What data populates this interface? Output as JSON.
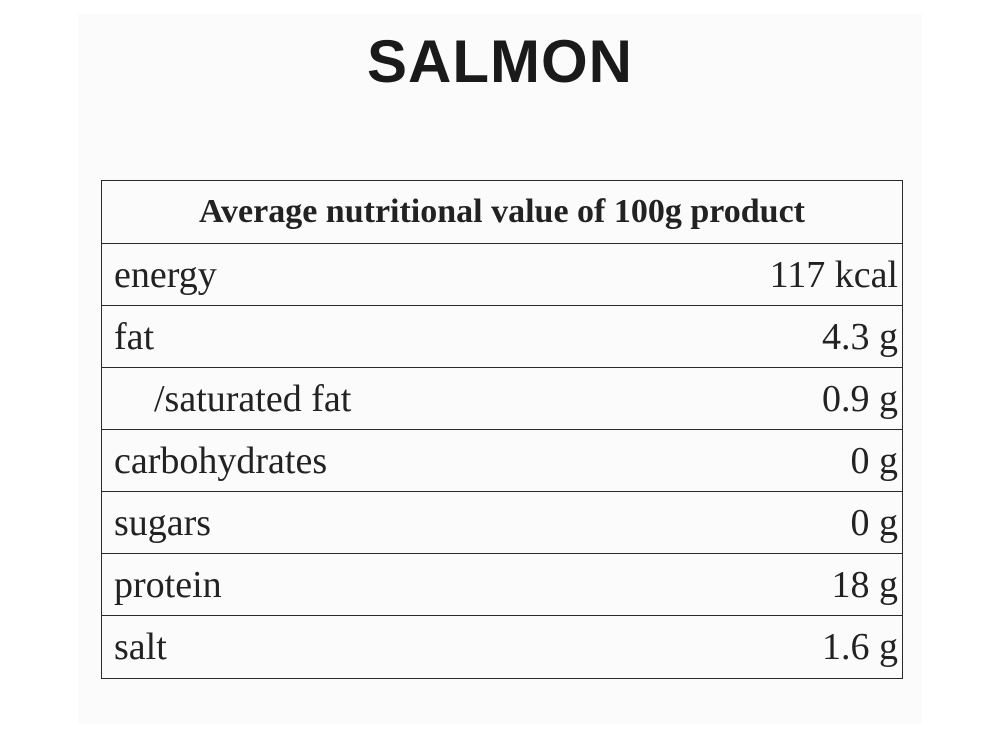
{
  "title": "SALMON",
  "table": {
    "header": "Average nutritional value of 100g product",
    "rows": [
      {
        "name": "energy",
        "value": "117 kcal"
      },
      {
        "name": "fat",
        "value": "4.3 g"
      },
      {
        "name": "/saturated fat",
        "value": "0.9 g"
      },
      {
        "name": "carbohydrates",
        "value": "0 g"
      },
      {
        "name": "sugars",
        "value": "0 g"
      },
      {
        "name": "protein",
        "value": "18 g"
      },
      {
        "name": "salt",
        "value": "1.6 g"
      }
    ]
  }
}
